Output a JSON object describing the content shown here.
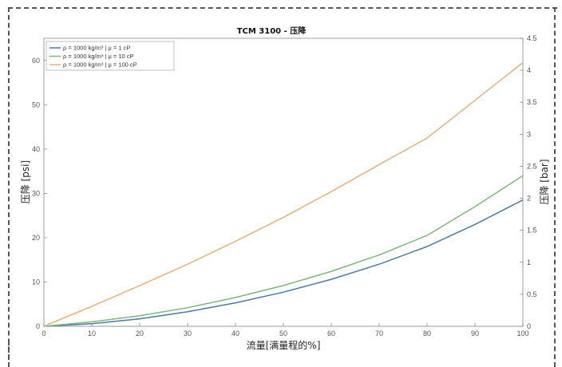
{
  "chart_data": {
    "type": "line",
    "title": "TCM 3100 - 压降",
    "xlabel": "流量[满量程的%]",
    "ylabel": "压降 [psi]",
    "y2label": "压降 [bar]",
    "xlim": [
      0,
      100
    ],
    "ylim": [
      0,
      65
    ],
    "y2lim": [
      0,
      4.5
    ],
    "x_ticks": [
      0,
      10,
      20,
      30,
      40,
      50,
      60,
      70,
      80,
      90,
      100
    ],
    "y_ticks": [
      0,
      10,
      20,
      30,
      40,
      50,
      60
    ],
    "y2_ticks": [
      0,
      0.5,
      1,
      1.5,
      2,
      2.5,
      3,
      3.5,
      4,
      4.5
    ],
    "grid": false,
    "legend_position": "top-left",
    "x": [
      0,
      10,
      20,
      30,
      40,
      50,
      60,
      70,
      80,
      90,
      100
    ],
    "series": [
      {
        "name": "ρ = 1000 kg/m³ | μ = 1 cP",
        "color": "#4a7ba7",
        "values": [
          0,
          0.6,
          1.7,
          3.3,
          5.3,
          7.7,
          10.6,
          14.0,
          18.0,
          23.0,
          28.5
        ]
      },
      {
        "name": "ρ = 1000 kg/m³ | μ = 10 cP",
        "color": "#7ab87a",
        "values": [
          0,
          1.0,
          2.4,
          4.2,
          6.5,
          9.2,
          12.4,
          16.1,
          20.5,
          27.0,
          34.0
        ]
      },
      {
        "name": "ρ = 1000 kg/m³ | μ = 100 cP",
        "color": "#e8b27a",
        "values": [
          0,
          4.5,
          9.2,
          14.0,
          19.2,
          24.6,
          30.4,
          36.5,
          42.5,
          51.0,
          59.5
        ]
      }
    ]
  }
}
